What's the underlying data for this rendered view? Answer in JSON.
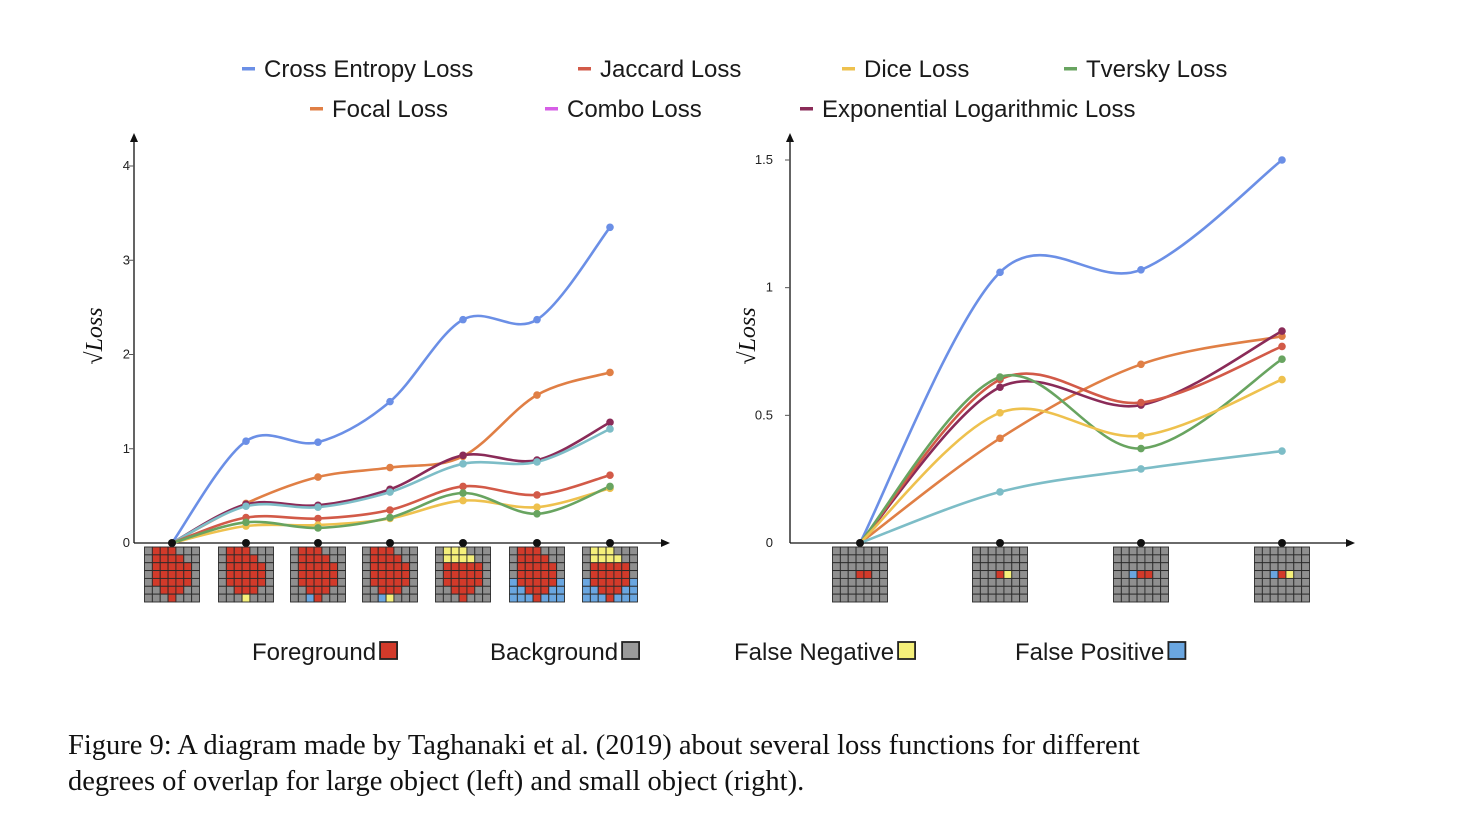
{
  "legend": [
    {
      "name": "Cross Entropy Loss",
      "color": "#6b8fe6"
    },
    {
      "name": "Jaccard Loss",
      "color": "#d25a48"
    },
    {
      "name": "Dice Loss",
      "color": "#eec14e"
    },
    {
      "name": "Tversky Loss",
      "color": "#68a460"
    },
    {
      "name": "Focal Loss",
      "color": "#e07f45"
    },
    {
      "name": "Combo Loss",
      "color": "#d65ee6"
    },
    {
      "name": "Exponential Logarithmic Loss",
      "color": "#8a2b58"
    }
  ],
  "cell_legend": [
    {
      "label": "Foreground",
      "color": "#d23a2a"
    },
    {
      "label": "Background",
      "color": "#9a9a9a"
    },
    {
      "label": "False Negative",
      "color": "#f5f07a"
    },
    {
      "label": "False Positive",
      "color": "#6aa6e0"
    }
  ],
  "caption": {
    "line1": "Figure 9:  A diagram made by Taghanaki et al. (2019) about several loss functions for different",
    "line2": "degrees of overlap for large object (left) and small object (right)."
  },
  "chart_data": [
    {
      "type": "line",
      "panel": "left",
      "ylabel": "√Loss",
      "ylim": [
        0,
        4
      ],
      "yticks": [
        "0",
        "1",
        "2",
        "3",
        "4"
      ],
      "x": [
        0,
        1,
        2,
        3,
        4,
        5,
        6
      ],
      "series": [
        {
          "name": "Cross Entropy Loss",
          "color": "#6b8fe6",
          "values": [
            0,
            1.08,
            1.07,
            1.5,
            2.37,
            2.37,
            3.35
          ]
        },
        {
          "name": "Focal Loss",
          "color": "#e07f45",
          "values": [
            0,
            0.42,
            0.7,
            0.8,
            0.92,
            1.57,
            1.81
          ]
        },
        {
          "name": "Exponential Logarithmic Loss",
          "color": "#8a2b58",
          "values": [
            0,
            0.41,
            0.4,
            0.57,
            0.93,
            0.88,
            1.28
          ]
        },
        {
          "name": "",
          "color": "#7dbdc7",
          "values": [
            0,
            0.39,
            0.38,
            0.54,
            0.84,
            0.86,
            1.21
          ]
        },
        {
          "name": "Jaccard Loss",
          "color": "#d25a48",
          "values": [
            0,
            0.27,
            0.26,
            0.35,
            0.6,
            0.51,
            0.72
          ]
        },
        {
          "name": "Dice Loss",
          "color": "#eec14e",
          "values": [
            0,
            0.18,
            0.19,
            0.26,
            0.45,
            0.38,
            0.58
          ]
        },
        {
          "name": "Tversky Loss",
          "color": "#68a460",
          "values": [
            0,
            0.22,
            0.16,
            0.27,
            0.53,
            0.31,
            0.6
          ]
        }
      ]
    },
    {
      "type": "line",
      "panel": "right",
      "ylabel": "√Loss",
      "ylim": [
        0,
        1.5
      ],
      "yticks": [
        "0",
        "0.5",
        "1",
        "1.5"
      ],
      "x": [
        0,
        1,
        2,
        3
      ],
      "series": [
        {
          "name": "Cross Entropy Loss",
          "color": "#6b8fe6",
          "values": [
            0,
            1.06,
            1.07,
            1.5
          ]
        },
        {
          "name": "Focal Loss",
          "color": "#e07f45",
          "values": [
            0,
            0.41,
            0.7,
            0.81
          ]
        },
        {
          "name": "Exponential Logarithmic Loss",
          "color": "#8a2b58",
          "values": [
            0,
            0.61,
            0.54,
            0.83
          ]
        },
        {
          "name": "Jaccard Loss",
          "color": "#d25a48",
          "values": [
            0,
            0.64,
            0.55,
            0.77
          ]
        },
        {
          "name": "Tversky Loss",
          "color": "#68a460",
          "values": [
            0,
            0.65,
            0.37,
            0.72
          ]
        },
        {
          "name": "Dice Loss",
          "color": "#eec14e",
          "values": [
            0,
            0.51,
            0.42,
            0.64
          ]
        },
        {
          "name": "",
          "color": "#7dbdc7",
          "values": [
            0,
            0.2,
            0.29,
            0.36
          ]
        }
      ]
    }
  ],
  "grids": {
    "left": [
      [
        "GRRRGGG",
        "GRRRRGG",
        "GRRRRRG",
        "GRRRRRG",
        "GRRRRRG",
        "GGRRRGG",
        "GGGRGGG"
      ],
      [
        "GRRRGGG",
        "GRRRRGG",
        "GRRRRRG",
        "GRRRRRG",
        "GRRRRRG",
        "GGRRRGG",
        "GGGYGGG"
      ],
      [
        "GRRRGGG",
        "GRRRRGG",
        "GRRRRRG",
        "GRRRRRG",
        "GRRRRRG",
        "GGRRRGG",
        "GGBRGGG"
      ],
      [
        "GRRRGGG",
        "GRRRRGG",
        "GRRRRRG",
        "GRRRRRG",
        "GRRRRRG",
        "GGRRRGG",
        "GGBYGGG"
      ],
      [
        "GYYYGGG",
        "GYYYYGG",
        "GRRRRRG",
        "GRRRRRG",
        "GRRRRRG",
        "GGRRRGG",
        "GGGRGGG"
      ],
      [
        "GRRRGGG",
        "GRRRRGG",
        "GRRRRRG",
        "GRRRRRG",
        "BRRRRRB",
        "BBRRRBB",
        "BBBRBBB"
      ],
      [
        "GYYYGGG",
        "GYYYYGG",
        "GRRRRRG",
        "GRRRRRG",
        "BRRRRRB",
        "BBRRRBB",
        "BBBRBBB"
      ]
    ],
    "right": [
      [
        "GGGGGGG",
        "GGGGGGG",
        "GGGGGGG",
        "GGGRRGG",
        "GGGGGGG",
        "GGGGGGG",
        "GGGGGGG"
      ],
      [
        "GGGGGGG",
        "GGGGGGG",
        "GGGGGGG",
        "GGGRYGG",
        "GGGGGGG",
        "GGGGGGG",
        "GGGGGGG"
      ],
      [
        "GGGGGGG",
        "GGGGGGG",
        "GGGGGGG",
        "GGBRRGG",
        "GGGGGGG",
        "GGGGGGG",
        "GGGGGGG"
      ],
      [
        "GGGGGGG",
        "GGGGGGG",
        "GGGGGGG",
        "GGBRYGG",
        "GGGGGGG",
        "GGGGGGG",
        "GGGGGGG"
      ]
    ]
  }
}
